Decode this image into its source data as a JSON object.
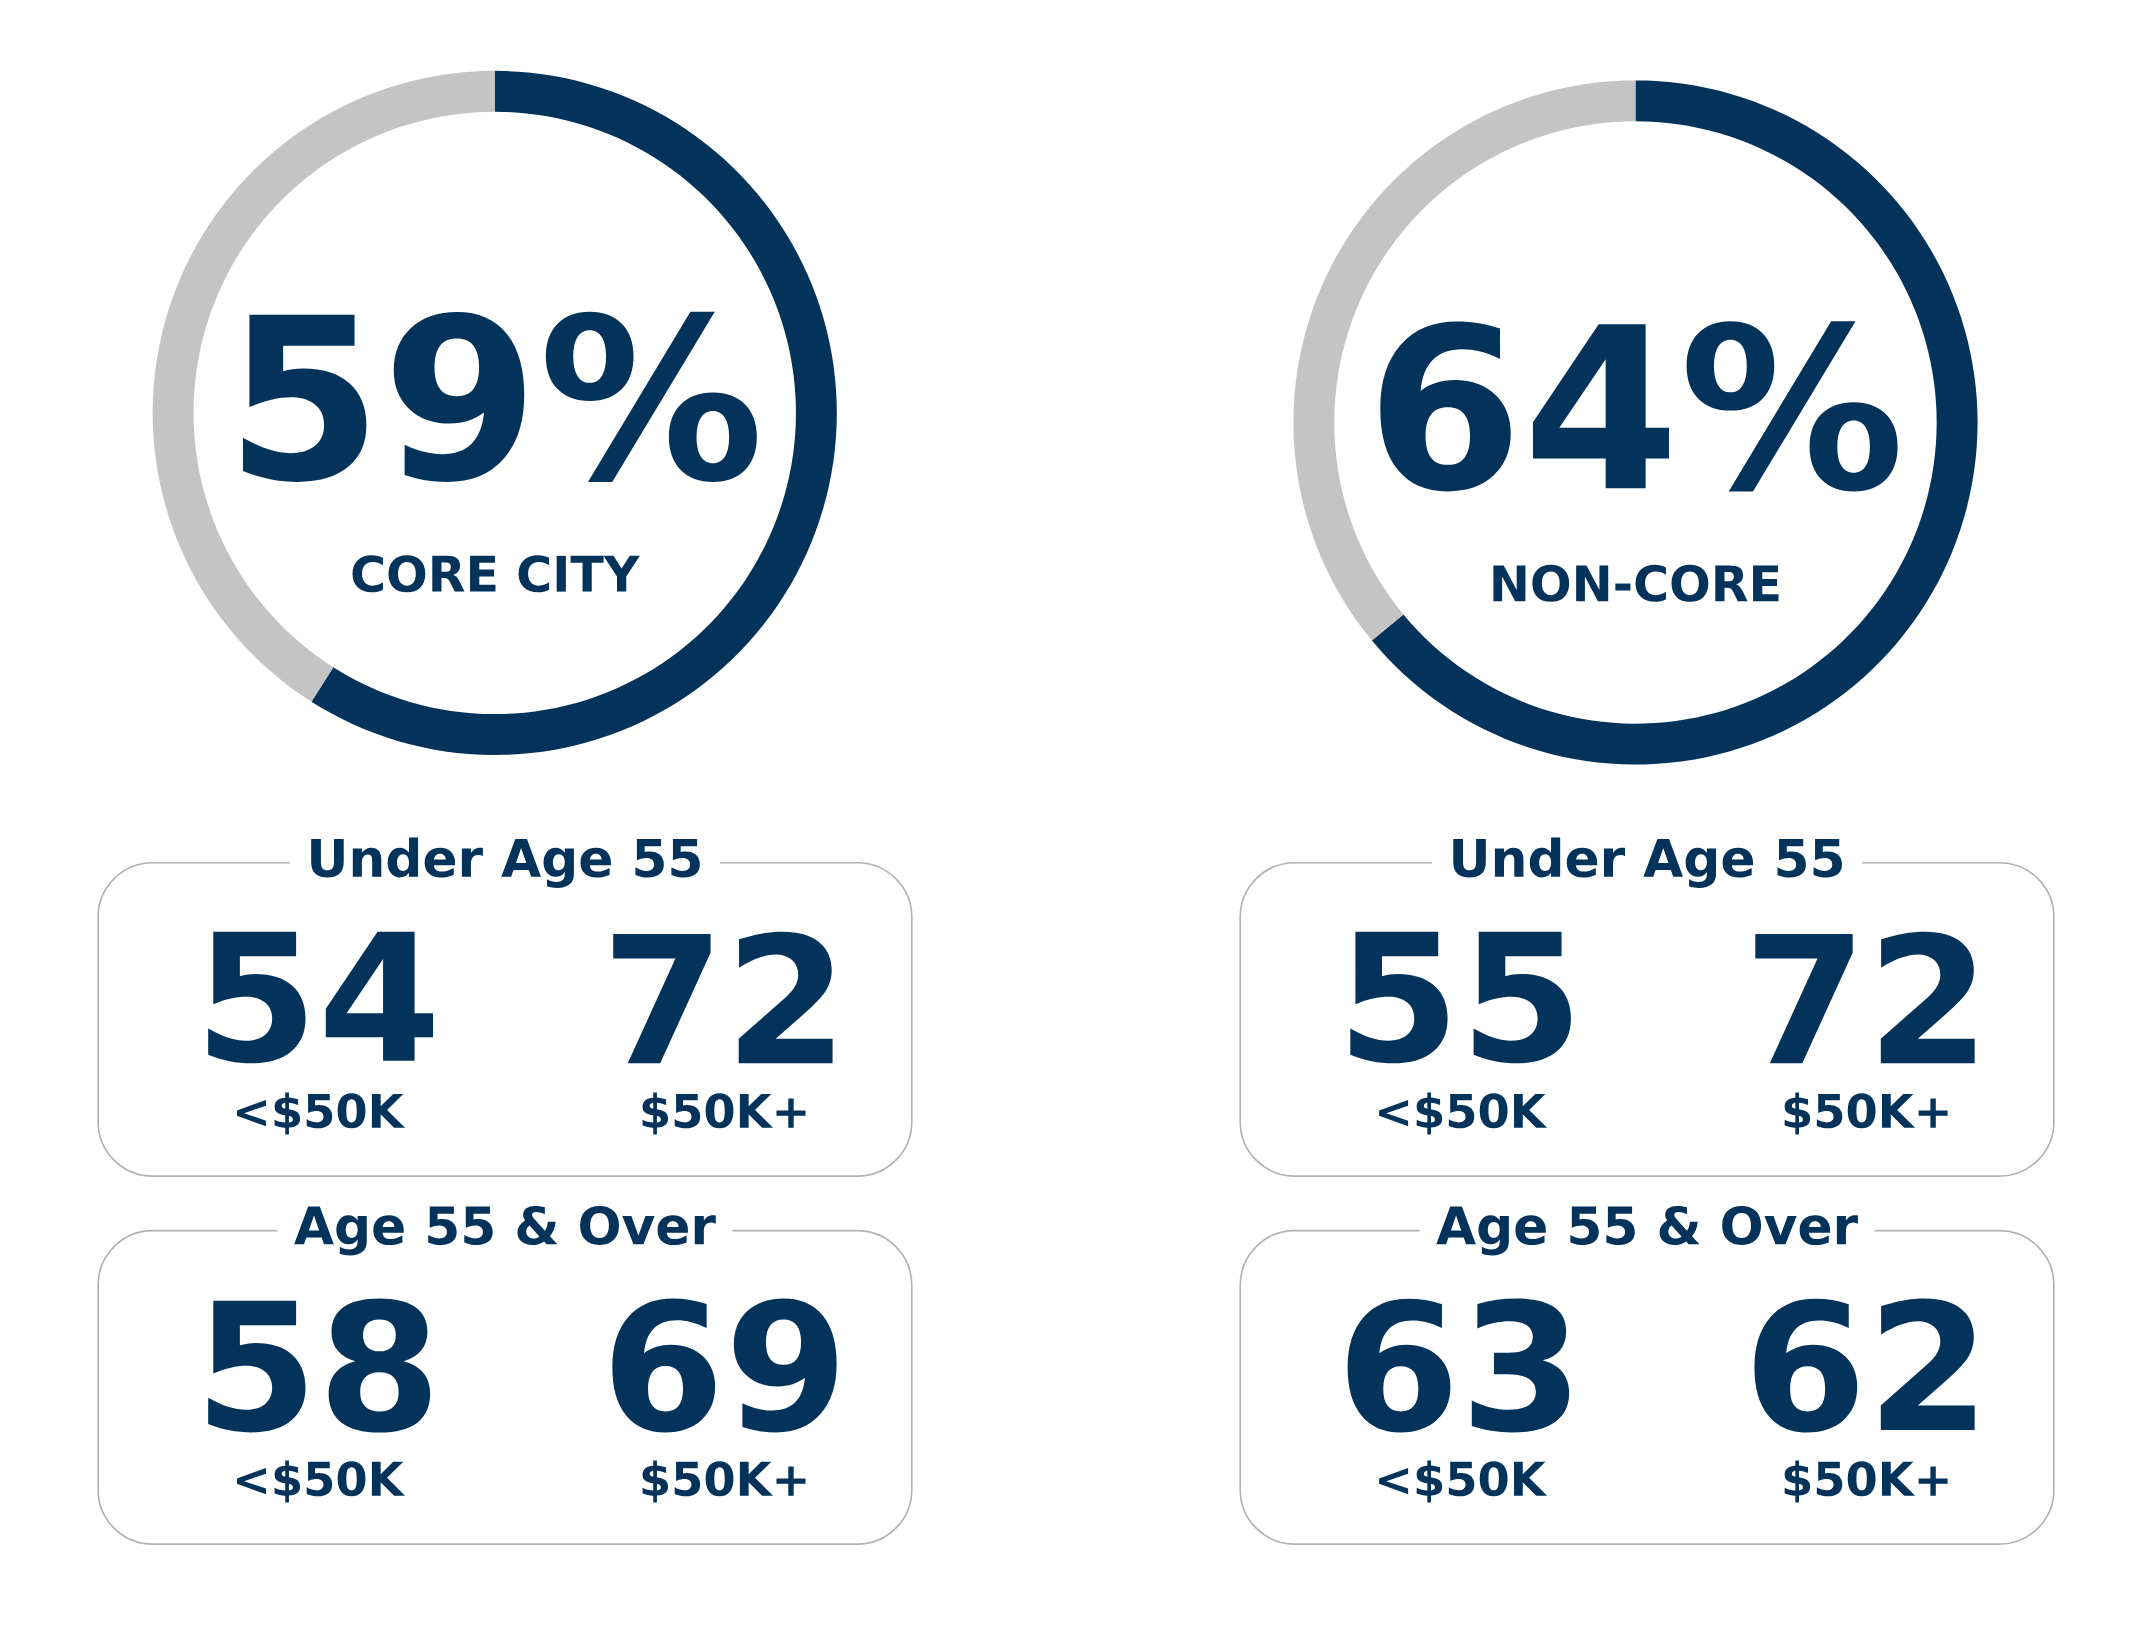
{
  "chart_data": [
    {
      "type": "donut",
      "categories": [
        "CORE CITY",
        null
      ],
      "values": [
        59,
        41
      ],
      "colors": [
        "#03325a",
        "#c4c4c4"
      ],
      "value_labels": [
        "59%",
        null
      ]
    },
    {
      "type": "donut",
      "categories": [
        "NON-CORE",
        null
      ],
      "values": [
        64,
        36
      ],
      "colors": [
        "#03325a",
        "#c4c4c4"
      ],
      "value_labels": [
        "64%",
        null
      ]
    },
    {
      "type": "other",
      "title": "Under Age 55",
      "categories": [
        "<$50K",
        "$50K+"
      ],
      "values": [
        54,
        72
      ],
      "data_labels": true
    },
    {
      "type": "other",
      "title": "Under Age 55",
      "categories": [
        "<$50K",
        "$50K+"
      ],
      "values": [
        55,
        72
      ],
      "data_labels": true
    },
    {
      "type": "other",
      "title": "Age 55 & Over",
      "categories": [
        "<$50K",
        "$50K+"
      ],
      "values": [
        58,
        69
      ],
      "data_labels": true
    },
    {
      "type": "other",
      "title": "Age 55 & Over",
      "categories": [
        "<$50K",
        "$50K+"
      ],
      "values": [
        63,
        62
      ],
      "data_labels": true
    }
  ]
}
